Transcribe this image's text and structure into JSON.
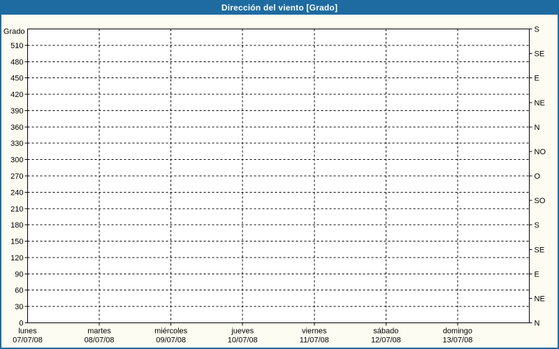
{
  "titlebar": {
    "text": "Dirección del viento [Grado]"
  },
  "colors": {
    "titlebar_bg": "#1e6ba1",
    "titlebar_text": "#ffffff",
    "window_border": "#1e6ba1",
    "page_bg": "#fcfcf2",
    "plot_bg": "#ffffff",
    "axis_and_grid": "#000000",
    "label_text": "#000000"
  },
  "chart_data": {
    "type": "line",
    "title": "Dirección del viento [Grado]",
    "y_left_axis_label": "Grado",
    "ylim": [
      0,
      540
    ],
    "y_left_ticks": [
      0,
      30,
      60,
      90,
      120,
      150,
      180,
      210,
      240,
      270,
      300,
      330,
      360,
      390,
      420,
      450,
      480,
      510
    ],
    "y_right_ticks": [
      {
        "deg": 0,
        "label": "N"
      },
      {
        "deg": 45,
        "label": "NE"
      },
      {
        "deg": 90,
        "label": "E"
      },
      {
        "deg": 135,
        "label": "SE"
      },
      {
        "deg": 180,
        "label": "S"
      },
      {
        "deg": 225,
        "label": "SO"
      },
      {
        "deg": 270,
        "label": "O"
      },
      {
        "deg": 315,
        "label": "NO"
      },
      {
        "deg": 360,
        "label": "N"
      },
      {
        "deg": 405,
        "label": "NE"
      },
      {
        "deg": 450,
        "label": "E"
      },
      {
        "deg": 495,
        "label": "SE"
      },
      {
        "deg": 540,
        "label": "S"
      }
    ],
    "x_categories": [
      {
        "day": "lunes",
        "date": "07/07/08"
      },
      {
        "day": "martes",
        "date": "08/07/08"
      },
      {
        "day": "miércoles",
        "date": "09/07/08"
      },
      {
        "day": "jueves",
        "date": "10/07/08"
      },
      {
        "day": "viernes",
        "date": "11/07/08"
      },
      {
        "day": "sábado",
        "date": "12/07/08"
      },
      {
        "day": "domingo",
        "date": "13/07/08"
      }
    ],
    "series": [],
    "grid": "dashed",
    "legend": "none"
  }
}
